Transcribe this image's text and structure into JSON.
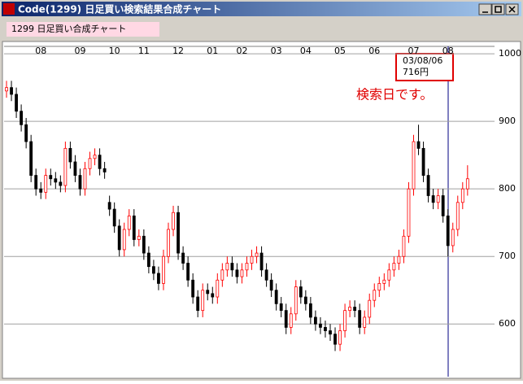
{
  "window": {
    "title": "Code(1299)  日足買い検索結果合成チャート"
  },
  "header": {
    "label": "1299  日足買い合成チャート"
  },
  "chart_data": {
    "type": "candlestick",
    "categories": [
      null,
      null,
      null,
      null,
      null,
      null,
      null,
      "08",
      null,
      null,
      null,
      null,
      null,
      null,
      null,
      "09",
      null,
      null,
      null,
      null,
      null,
      null,
      "10",
      null,
      null,
      null,
      null,
      null,
      "11",
      null,
      null,
      null,
      null,
      null,
      null,
      "12",
      null,
      null,
      null,
      null,
      null,
      null,
      "01",
      null,
      null,
      null,
      null,
      null,
      "02",
      null,
      null,
      null,
      null,
      null,
      null,
      "03",
      null,
      null,
      null,
      null,
      null,
      "04",
      null,
      null,
      null,
      null,
      null,
      null,
      "05",
      null,
      null,
      null,
      null,
      null,
      null,
      "06",
      null,
      null,
      null,
      null,
      null,
      null,
      null,
      "07",
      null,
      null,
      null,
      null,
      null,
      null,
      "08",
      null,
      null,
      null,
      null
    ],
    "open": [
      945,
      950,
      940,
      915,
      895,
      870,
      820,
      800,
      795,
      820,
      815,
      810,
      805,
      860,
      840,
      820,
      800,
      830,
      845,
      850,
      830,
      780,
      770,
      745,
      710,
      740,
      760,
      725,
      730,
      705,
      685,
      675,
      660,
      700,
      740,
      765,
      705,
      690,
      665,
      640,
      620,
      650,
      645,
      640,
      665,
      680,
      690,
      680,
      670,
      680,
      690,
      700,
      705,
      680,
      665,
      650,
      630,
      620,
      595,
      615,
      655,
      640,
      630,
      610,
      600,
      595,
      590,
      585,
      570,
      590,
      620,
      625,
      620,
      595,
      610,
      635,
      650,
      660,
      665,
      680,
      690,
      700,
      730,
      800,
      870,
      860,
      820,
      790,
      780,
      790,
      760,
      716,
      740,
      780,
      800
    ],
    "high": [
      960,
      960,
      950,
      925,
      905,
      880,
      830,
      810,
      830,
      830,
      825,
      820,
      870,
      870,
      850,
      830,
      840,
      855,
      860,
      860,
      840,
      790,
      780,
      755,
      750,
      770,
      770,
      740,
      740,
      715,
      695,
      685,
      710,
      750,
      775,
      775,
      715,
      700,
      675,
      650,
      660,
      660,
      655,
      675,
      690,
      700,
      700,
      690,
      690,
      700,
      710,
      715,
      715,
      690,
      675,
      660,
      640,
      630,
      625,
      665,
      665,
      650,
      640,
      620,
      610,
      605,
      600,
      595,
      600,
      630,
      635,
      635,
      630,
      620,
      645,
      660,
      670,
      675,
      690,
      700,
      710,
      740,
      810,
      880,
      895,
      870,
      830,
      800,
      800,
      800,
      770,
      750,
      790,
      810,
      835
    ],
    "low": [
      935,
      930,
      905,
      885,
      860,
      810,
      790,
      785,
      785,
      805,
      800,
      795,
      795,
      830,
      810,
      790,
      790,
      820,
      835,
      820,
      815,
      760,
      735,
      700,
      700,
      730,
      715,
      715,
      695,
      675,
      665,
      650,
      650,
      690,
      730,
      695,
      680,
      655,
      630,
      610,
      610,
      635,
      630,
      630,
      655,
      670,
      670,
      660,
      660,
      670,
      680,
      690,
      670,
      655,
      640,
      620,
      610,
      585,
      585,
      605,
      630,
      620,
      600,
      590,
      585,
      580,
      575,
      560,
      560,
      580,
      610,
      610,
      585,
      585,
      600,
      625,
      640,
      650,
      655,
      670,
      680,
      690,
      720,
      790,
      850,
      810,
      780,
      770,
      770,
      750,
      700,
      706,
      730,
      770,
      790
    ],
    "close": [
      950,
      940,
      915,
      895,
      870,
      820,
      800,
      795,
      820,
      815,
      810,
      805,
      860,
      840,
      820,
      800,
      830,
      845,
      850,
      830,
      825,
      770,
      745,
      710,
      740,
      760,
      725,
      730,
      705,
      685,
      675,
      660,
      700,
      740,
      765,
      705,
      690,
      665,
      640,
      620,
      650,
      645,
      640,
      665,
      680,
      690,
      680,
      670,
      680,
      690,
      700,
      705,
      680,
      665,
      650,
      630,
      620,
      595,
      615,
      655,
      640,
      630,
      610,
      600,
      595,
      590,
      585,
      570,
      590,
      620,
      625,
      620,
      595,
      610,
      635,
      650,
      660,
      665,
      680,
      690,
      700,
      730,
      800,
      870,
      860,
      820,
      790,
      780,
      790,
      760,
      716,
      740,
      780,
      800,
      815
    ],
    "up_color": "#ff0000",
    "down_color": "#000000",
    "ylim": [
      522,
      1011
    ],
    "yticks": [
      600,
      700,
      800,
      900,
      1000
    ],
    "grid": true,
    "annotation": {
      "date": "03/08/06",
      "price": "716円",
      "note": "検索日です。"
    }
  }
}
